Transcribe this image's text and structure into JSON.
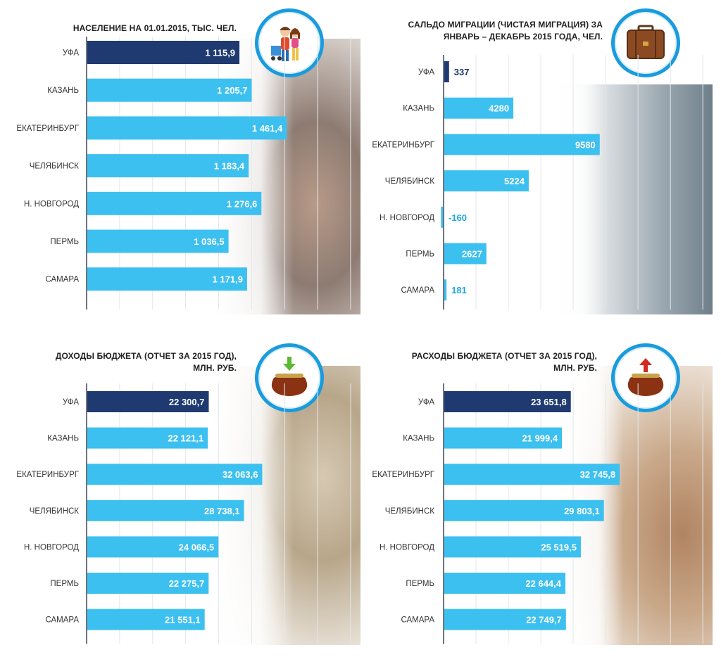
{
  "colors": {
    "highlight": "#1f3a70",
    "bar": "#3cc0f0",
    "axis": "#6d7480",
    "badge_ring": "#1a9bdc"
  },
  "chart_data": [
    {
      "type": "bar",
      "orientation": "horizontal",
      "title": "НАСЕЛЕНИЕ НА 01.01.2015, ТЫС. ЧЕЛ.",
      "categories": [
        "УФА",
        "КАЗАНЬ",
        "ЕКАТЕРИНБУРГ",
        "ЧЕЛЯБИНСК",
        "Н. НОВГОРОД",
        "ПЕРМЬ",
        "САМАРА"
      ],
      "values": [
        1115.9,
        1205.7,
        1461.4,
        1183.4,
        1276.6,
        1036.5,
        1171.9
      ],
      "labels": [
        "1 115,9",
        "1 205,7",
        "1 461,4",
        "1 183,4",
        "1 276,6",
        "1 036,5",
        "1 171,9"
      ],
      "highlight": "УФА",
      "xlim": [
        0,
        2000
      ],
      "icon": "family-icon"
    },
    {
      "type": "bar",
      "orientation": "horizontal",
      "title": "САЛЬДО МИГРАЦИИ (ЧИСТАЯ МИГРАЦИЯ) ЗА ЯНВАРЬ – ДЕКАБРЬ 2015 ГОДА, ЧЕЛ.",
      "categories": [
        "УФА",
        "КАЗАНЬ",
        "ЕКАТЕРИНБУРГ",
        "ЧЕЛЯБИНСК",
        "Н. НОВГОРОД",
        "ПЕРМЬ",
        "САМАРА"
      ],
      "values": [
        337,
        4280,
        9580,
        5224,
        -160,
        2627,
        181
      ],
      "labels": [
        "337",
        "4280",
        "9580",
        "5224",
        "-160",
        "2627",
        "181"
      ],
      "highlight": "УФА",
      "xlim": [
        0,
        16500
      ],
      "icon": "suitcase-icon"
    },
    {
      "type": "bar",
      "orientation": "horizontal",
      "title": "ДОХОДЫ БЮДЖЕТА (ОТЧЕТ ЗА 2015 ГОД), МЛН. РУБ.",
      "categories": [
        "УФА",
        "КАЗАНЬ",
        "ЕКАТЕРИНБУРГ",
        "ЧЕЛЯБИНСК",
        "Н. НОВГОРОД",
        "ПЕРМЬ",
        "САМАРА"
      ],
      "values": [
        22300.7,
        22121.1,
        32063.6,
        28738.1,
        24066.5,
        22275.7,
        21551.1
      ],
      "labels": [
        "22 300,7",
        "22 121,1",
        "32 063,6",
        "28 738,1",
        "24 066,5",
        "22 275,7",
        "21 551,1"
      ],
      "highlight": "УФА",
      "xlim": [
        0,
        50000
      ],
      "icon": "purse-in-icon"
    },
    {
      "type": "bar",
      "orientation": "horizontal",
      "title": "РАСХОДЫ БЮДЖЕТА (ОТЧЕТ ЗА 2015 ГОД), МЛН. РУБ.",
      "categories": [
        "УФА",
        "КАЗАНЬ",
        "ЕКАТЕРИНБУРГ",
        "ЧЕЛЯБИНСК",
        "Н. НОВГОРОД",
        "ПЕРМЬ",
        "САМАРА"
      ],
      "values": [
        23651.8,
        21999.4,
        32745.8,
        29803.1,
        25519.5,
        22644.4,
        22749.7
      ],
      "labels": [
        "23 651,8",
        "21 999,4",
        "32 745,8",
        "29 803,1",
        "25 519,5",
        "22 644,4",
        "22 749,7"
      ],
      "highlight": "УФА",
      "xlim": [
        0,
        50000
      ],
      "icon": "purse-out-icon"
    }
  ]
}
